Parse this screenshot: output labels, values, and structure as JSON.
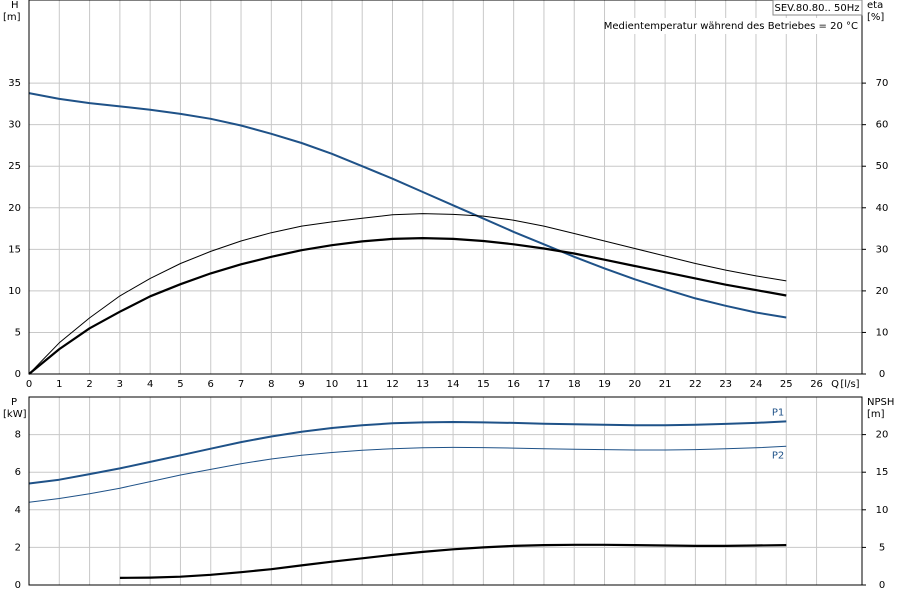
{
  "chart_data": [
    {
      "type": "line",
      "title": "SEV.80.80.. 50Hz",
      "annotation": "Medientemperatur während des Betriebes = 20 °C",
      "ylabel": [
        "H",
        "[m]"
      ],
      "y2label": [
        "eta",
        "[%]"
      ],
      "xlabel": [
        "Q",
        "[l/s]"
      ],
      "x": [
        0,
        1,
        2,
        3,
        4,
        5,
        6,
        7,
        8,
        9,
        10,
        11,
        12,
        13,
        14,
        15,
        16,
        17,
        18,
        19,
        20,
        21,
        22,
        23,
        24,
        25
      ],
      "xlim": [
        0,
        27.5
      ],
      "xticks": [
        0,
        1,
        2,
        3,
        4,
        5,
        6,
        7,
        8,
        9,
        10,
        11,
        12,
        13,
        14,
        15,
        16,
        17,
        18,
        19,
        20,
        21,
        22,
        23,
        24,
        25,
        26
      ],
      "ylim": [
        0,
        45
      ],
      "yticks": [
        0,
        5,
        10,
        15,
        20,
        25,
        30,
        35
      ],
      "y2lim": [
        0,
        90
      ],
      "y2ticks": [
        0,
        10,
        20,
        30,
        40,
        50,
        60,
        70
      ],
      "grid": true,
      "series": [
        {
          "color": "#1f5288",
          "width": 2,
          "values": [
            33.8,
            33.1,
            32.6,
            32.2,
            31.8,
            31.3,
            30.7,
            29.9,
            28.9,
            27.8,
            26.5,
            25.0,
            23.5,
            21.9,
            20.3,
            18.7,
            17.1,
            15.6,
            14.1,
            12.7,
            11.4,
            10.2,
            9.1,
            8.2,
            7.4,
            6.8
          ]
        },
        {
          "color": "#000000",
          "width": 1,
          "axis": "y2",
          "values": [
            0,
            7.5,
            13.5,
            18.8,
            23,
            26.6,
            29.5,
            32,
            34,
            35.6,
            36.6,
            37.5,
            38.3,
            38.6,
            38.4,
            38,
            37,
            35.6,
            33.8,
            32,
            30.2,
            28.4,
            26.6,
            25,
            23.6,
            22.4
          ]
        },
        {
          "color": "#000000",
          "width": 2.2,
          "axis": "y2",
          "values": [
            0,
            6,
            11,
            15,
            18.7,
            21.6,
            24.2,
            26.4,
            28.2,
            29.8,
            31,
            31.9,
            32.5,
            32.7,
            32.5,
            32,
            31.2,
            30.2,
            29,
            27.5,
            26,
            24.5,
            23,
            21.5,
            20.2,
            18.9
          ]
        }
      ]
    },
    {
      "type": "line",
      "ylabel": [
        "P",
        "[kW]"
      ],
      "y2label": [
        "NPSH",
        "[m]"
      ],
      "x": [
        0,
        1,
        2,
        3,
        4,
        5,
        6,
        7,
        8,
        9,
        10,
        11,
        12,
        13,
        14,
        15,
        16,
        17,
        18,
        19,
        20,
        21,
        22,
        23,
        24,
        25
      ],
      "xlim": [
        0,
        27.5
      ],
      "ylim": [
        0,
        10
      ],
      "yticks": [
        0,
        2,
        4,
        6,
        8
      ],
      "y2lim": [
        0,
        25
      ],
      "y2ticks": [
        0,
        5,
        10,
        15,
        20
      ],
      "grid": true,
      "series": [
        {
          "name": "P1",
          "color": "#1f5288",
          "width": 2,
          "values": [
            5.4,
            5.6,
            5.9,
            6.2,
            6.55,
            6.9,
            7.25,
            7.6,
            7.9,
            8.15,
            8.35,
            8.5,
            8.6,
            8.65,
            8.67,
            8.65,
            8.62,
            8.58,
            8.55,
            8.52,
            8.5,
            8.5,
            8.52,
            8.57,
            8.62,
            8.7
          ]
        },
        {
          "name": "P2",
          "color": "#1f5288",
          "width": 1,
          "values": [
            4.4,
            4.6,
            4.85,
            5.15,
            5.5,
            5.85,
            6.15,
            6.45,
            6.7,
            6.9,
            7.05,
            7.17,
            7.25,
            7.3,
            7.32,
            7.31,
            7.28,
            7.25,
            7.22,
            7.2,
            7.18,
            7.18,
            7.2,
            7.25,
            7.3,
            7.38
          ]
        },
        {
          "color": "#000000",
          "width": 2.2,
          "axis": "y2",
          "values": [
            null,
            null,
            null,
            0.95,
            0.98,
            1.1,
            1.35,
            1.7,
            2.1,
            2.6,
            3.1,
            3.55,
            4.0,
            4.4,
            4.75,
            5.0,
            5.2,
            5.3,
            5.35,
            5.35,
            5.3,
            5.25,
            5.2,
            5.2,
            5.25,
            5.3
          ]
        }
      ]
    }
  ]
}
